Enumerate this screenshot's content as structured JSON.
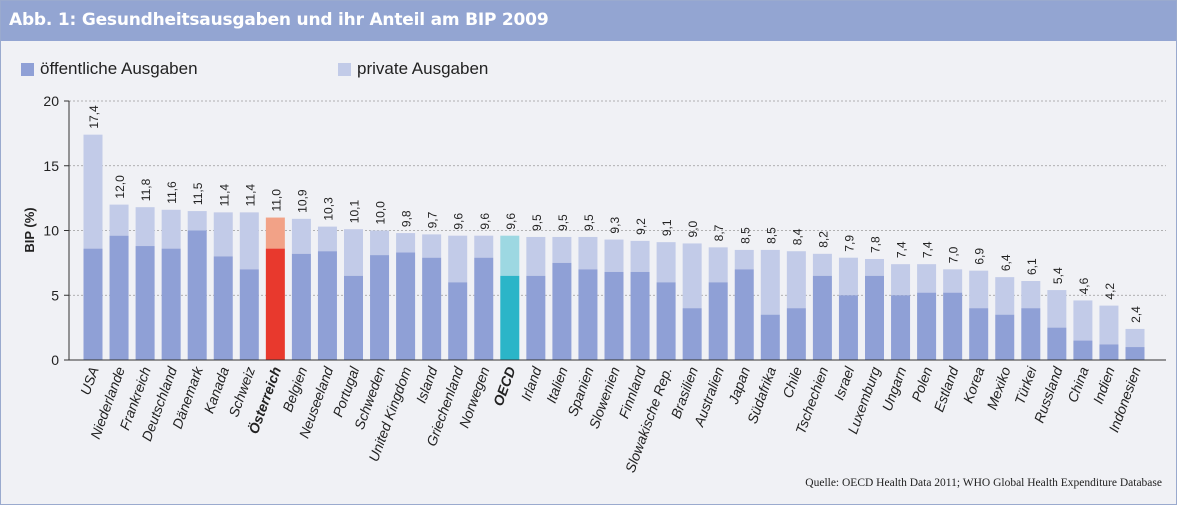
{
  "title": "Abb. 1: Gesundheitsausgaben und ihr Anteil am BIP 2009",
  "source": "Quelle: OECD Health Data 2011; WHO Global Health Expenditure Database",
  "colors": {
    "public": "#8fa0d6",
    "private": "#c2cbe8",
    "highlight_public": "#e8392d",
    "highlight_private": "#f2a287",
    "oecd_public": "#2bb5c8",
    "oecd_private": "#9dd8e2",
    "title_bar": "#93a5d2"
  },
  "chart_data": {
    "type": "bar",
    "stacked": true,
    "ylabel": "BIP (%)",
    "ylim": [
      0,
      20
    ],
    "yticks": [
      0,
      5,
      10,
      15,
      20
    ],
    "grid": true,
    "legend_position": "top-left",
    "categories": [
      "USA",
      "Niederlande",
      "Frankreich",
      "Deutschland",
      "Dänemark",
      "Kanada",
      "Schweiz",
      "Österreich",
      "Belgien",
      "Neuseeland",
      "Portugal",
      "Schweden",
      "United Kingdom",
      "Island",
      "Griechenland",
      "Norwegen",
      "OECD",
      "Irland",
      "Italien",
      "Spanien",
      "Slowenien",
      "Finnland",
      "Slowakische Rep.",
      "Brasilien",
      "Australien",
      "Japan",
      "Südafrika",
      "Chile",
      "Tschechien",
      "Israel",
      "Luxemburg",
      "Ungarn",
      "Polen",
      "Estland",
      "Korea",
      "Mexiko",
      "Türkei",
      "Russland",
      "China",
      "Indien",
      "Indonesien"
    ],
    "bold_categories": [
      "Österreich",
      "OECD"
    ],
    "series": [
      {
        "name": "öffentliche Ausgaben",
        "values": [
          8.6,
          9.6,
          8.8,
          8.6,
          10.0,
          8.0,
          7.0,
          8.6,
          8.2,
          8.4,
          6.5,
          8.1,
          8.3,
          7.9,
          6.0,
          7.9,
          6.5,
          6.5,
          7.5,
          7.0,
          6.8,
          6.8,
          6.0,
          4.0,
          6.0,
          7.0,
          3.5,
          4.0,
          6.5,
          5.0,
          6.5,
          5.0,
          5.2,
          5.2,
          4.0,
          3.5,
          4.0,
          2.5,
          1.5,
          1.2,
          1.0
        ]
      },
      {
        "name": "private Ausgaben",
        "values": [
          8.8,
          2.4,
          3.0,
          3.0,
          1.5,
          3.4,
          4.4,
          2.4,
          2.7,
          1.9,
          3.6,
          1.9,
          1.5,
          1.8,
          3.6,
          1.7,
          3.1,
          3.0,
          2.0,
          2.5,
          2.5,
          2.4,
          3.1,
          5.0,
          2.7,
          1.5,
          5.0,
          4.4,
          1.7,
          2.9,
          1.3,
          2.4,
          2.2,
          1.8,
          2.9,
          2.9,
          2.1,
          2.9,
          3.1,
          3.0,
          1.4
        ]
      }
    ],
    "total_labels": [
      "17,4",
      "12,0",
      "11,8",
      "11,6",
      "11,5",
      "11,4",
      "11,4",
      "11,0",
      "10,9",
      "10,3",
      "10,1",
      "10,0",
      "9,8",
      "9,7",
      "9,6",
      "9,6",
      "9,6",
      "9,5",
      "9,5",
      "9,5",
      "9,3",
      "9,2",
      "9,1",
      "9,0",
      "8,7",
      "8,5",
      "8,5",
      "8,4",
      "8,2",
      "7,9",
      "7,8",
      "7,4",
      "7,4",
      "7,0",
      "6,9",
      "6,4",
      "6,1",
      "5,4",
      "4,6",
      "4,2",
      "2,4"
    ]
  }
}
